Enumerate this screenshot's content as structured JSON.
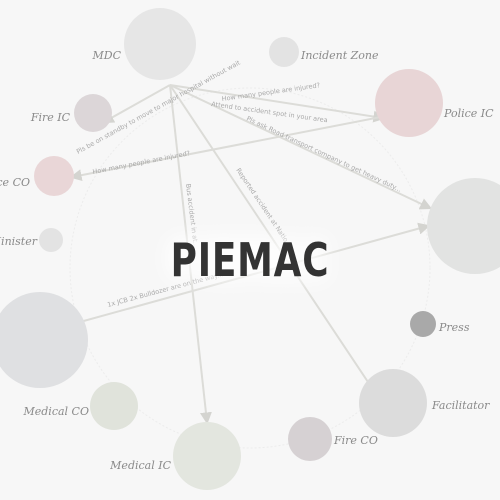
{
  "title": "PIEMAC",
  "colors": {
    "background": "#f7f7f7",
    "edge": "#dcdcd8",
    "title": "#333333"
  },
  "nodes": [
    {
      "id": "mdc",
      "label": "MDC",
      "color": "#e6e6e6"
    },
    {
      "id": "incident-zone",
      "label": "Incident Zone",
      "color": "#e3e3e3"
    },
    {
      "id": "police-ic",
      "label": "Police IC",
      "color": "#e8d5d6"
    },
    {
      "id": "fire-ic",
      "label": "Fire IC",
      "color": "#dcd6d8"
    },
    {
      "id": "police-co",
      "label": "Police CO",
      "color": "#e9d6d7"
    },
    {
      "id": "minister",
      "label": "Minister",
      "color": "#e3e3e3"
    },
    {
      "id": "right-big",
      "label": "",
      "color": "#e2e3e2"
    },
    {
      "id": "left-big",
      "label": "",
      "color": "#dfe0e2"
    },
    {
      "id": "press",
      "label": "Press",
      "color": "#a9a9a9"
    },
    {
      "id": "facilitator",
      "label": "Facilitator",
      "color": "#dcdcdc"
    },
    {
      "id": "medical-co",
      "label": "Medical CO",
      "color": "#e0e3db"
    },
    {
      "id": "fire-co",
      "label": "Fire CO",
      "color": "#d6d1d3"
    },
    {
      "id": "medical-ic",
      "label": "Medical IC",
      "color": "#e3e6df"
    }
  ],
  "edges": [
    {
      "id": "e1",
      "label": "How many people are injured?"
    },
    {
      "id": "e2",
      "label": "Attend to accident spot in your area"
    },
    {
      "id": "e3",
      "label": "Pls ask Road transport company to get heavy duty..."
    },
    {
      "id": "e4",
      "label": "Pls be on standby to move to major hospital without wait"
    },
    {
      "id": "e5",
      "label": "How many people are injured?"
    },
    {
      "id": "e6",
      "label": "Bus accident in at..."
    },
    {
      "id": "e7",
      "label": "Reported accident at Natio..."
    },
    {
      "id": "e8",
      "label": "1x JCB 2x Bulldozer are on the way..."
    }
  ]
}
